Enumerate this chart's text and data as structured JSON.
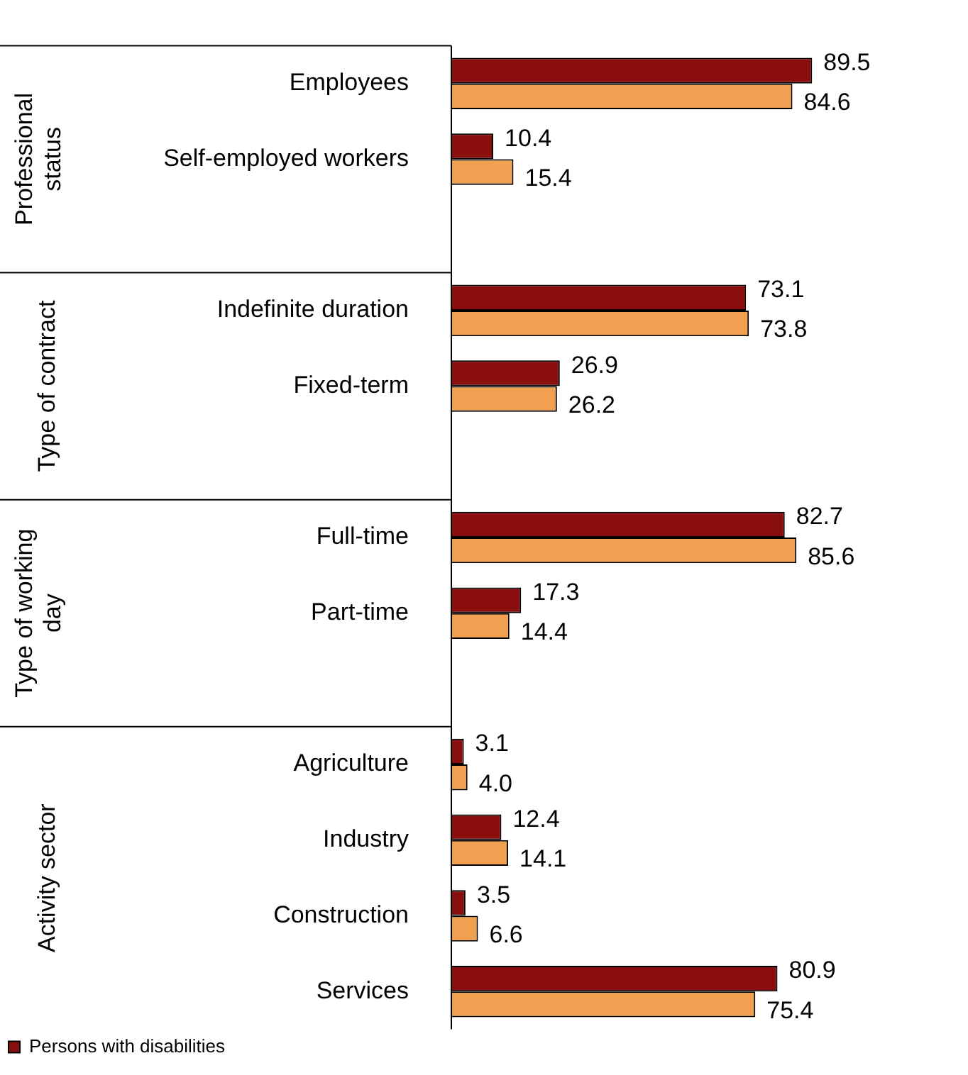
{
  "chart_data": {
    "type": "bar",
    "orientation": "horizontal",
    "categories": [
      "Employees",
      "Self-employed workers",
      null,
      "Indefinite duration",
      "Fixed-term",
      null,
      "Full-time",
      "Part-time",
      null,
      "Agriculture",
      "Industry",
      "Construction",
      "Services"
    ],
    "series": [
      {
        "name": "Persons with disabilities",
        "color": "#8b0e0e",
        "values": [
          89.5,
          10.4,
          null,
          73.1,
          26.9,
          null,
          82.7,
          17.3,
          null,
          3.1,
          12.4,
          3.5,
          80.9
        ],
        "value_labels": [
          "89.5",
          "10.4",
          null,
          "73.1",
          "26.9",
          null,
          "82.7",
          "17.3",
          null,
          "3.1",
          "12.4",
          "3.5",
          "80.9"
        ]
      },
      {
        "color": "#f0a050",
        "values": [
          84.6,
          15.4,
          null,
          73.8,
          26.2,
          null,
          85.6,
          14.4,
          null,
          4.0,
          14.1,
          6.6,
          75.4
        ],
        "value_labels": [
          "84.6",
          "15.4",
          null,
          "73.8",
          "26.2",
          null,
          "85.6",
          "14.4",
          null,
          "4.0",
          "14.1",
          "6.6",
          "75.4"
        ]
      }
    ],
    "annotations": [
      "Professional status",
      "Type of contract",
      "Type of working day",
      "Activity sector"
    ],
    "legend": "bottom left"
  }
}
